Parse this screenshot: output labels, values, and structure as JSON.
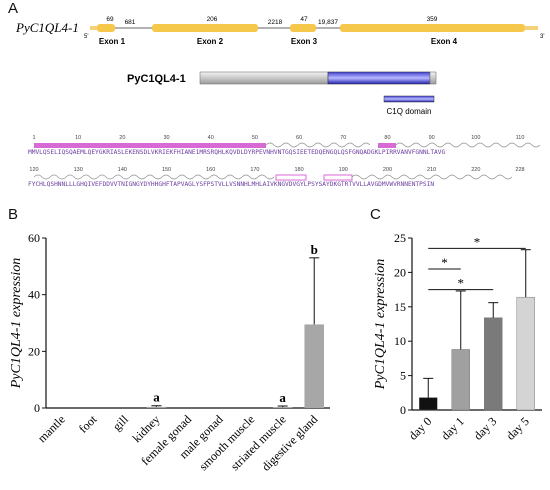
{
  "panels": {
    "a": "A",
    "b": "B",
    "c": "C"
  },
  "gene": {
    "name": "PyC1QL4-1",
    "end5": "5'",
    "end3": "3'",
    "numbers": [
      "69",
      "681",
      "206",
      "2218",
      "47",
      "19,837",
      "359"
    ],
    "exons": [
      "Exon 1",
      "Exon 2",
      "Exon 3",
      "Exon 4"
    ]
  },
  "protein": {
    "name": "PyC1QL4-1",
    "domain_label": "C1Q domain"
  },
  "sequence": {
    "line1_ticks": [
      "1",
      "10",
      "20",
      "30",
      "40",
      "50",
      "60",
      "70",
      "80",
      "90",
      "100",
      "110"
    ],
    "line1": "MMVLQSELIQSQAEMLQEYGKRIASLEKENSDLVKRIEKFHIANE1MRSRQHLKQVDLDYRPEVNHVNTGQSIEETEDQENGQLQSFGNQADGKLPIRRVANVFGNNLTAVG",
    "line2_ticks": [
      "120",
      "130",
      "140",
      "150",
      "160",
      "170",
      "180",
      "190",
      "200",
      "210",
      "220",
      "228"
    ],
    "line2": "FYCHLQSHNNLLLGHQIVEFDDVVTNIGNGYDYHHGHFTAPVAGLYSFPSTVLLVSNNHLMHLAIVKNGVDVGYLPSYSAYDKGTRTVVLLAVGDMVWVRNNENTPSIN"
  },
  "chart_data": [
    {
      "type": "bar",
      "panel": "B",
      "title": "",
      "xlabel": "",
      "ylabel": "PyC1QL4-1 expression",
      "ylim": [
        0,
        60
      ],
      "yticks": [
        "0",
        "20",
        "40",
        "60"
      ],
      "categories": [
        "mantle",
        "foot",
        "gill",
        "kidney",
        "female gonad",
        "male gonad",
        "smooth muscle",
        "striated muscle",
        "digestive gland"
      ],
      "values": [
        0,
        0,
        0,
        0.4,
        0,
        0,
        0,
        0.3,
        29.5
      ],
      "errors": [
        0,
        0,
        0,
        0.4,
        0,
        0,
        0,
        0.4,
        23.5
      ],
      "annotations": [
        {
          "index": 3,
          "text": "a"
        },
        {
          "index": 7,
          "text": "a"
        },
        {
          "index": 8,
          "text": "b"
        }
      ],
      "colors": {
        "bar": "#a7a7a7",
        "axis": "#111111"
      },
      "grid": false
    },
    {
      "type": "bar",
      "panel": "C",
      "title": "",
      "xlabel": "",
      "ylabel": "PyC1QL4-1 expression",
      "ylim": [
        0,
        25
      ],
      "yticks": [
        "0",
        "5",
        "10",
        "15",
        "20",
        "25"
      ],
      "categories": [
        "day 0",
        "day 1",
        "day 3",
        "day 5"
      ],
      "values": [
        1.8,
        8.8,
        13.4,
        16.4
      ],
      "errors": [
        2.8,
        8.5,
        2.2,
        6.9
      ],
      "significance": [
        {
          "from": 0,
          "to": 1,
          "text": "*"
        },
        {
          "from": 0,
          "to": 2,
          "text": "*"
        },
        {
          "from": 0,
          "to": 3,
          "text": "*"
        }
      ],
      "colors": {
        "bars": [
          "#111111",
          "#a0a0a0",
          "#7a7a7a",
          "#d4d4d4"
        ],
        "axis": "#111111"
      },
      "grid": false
    }
  ]
}
